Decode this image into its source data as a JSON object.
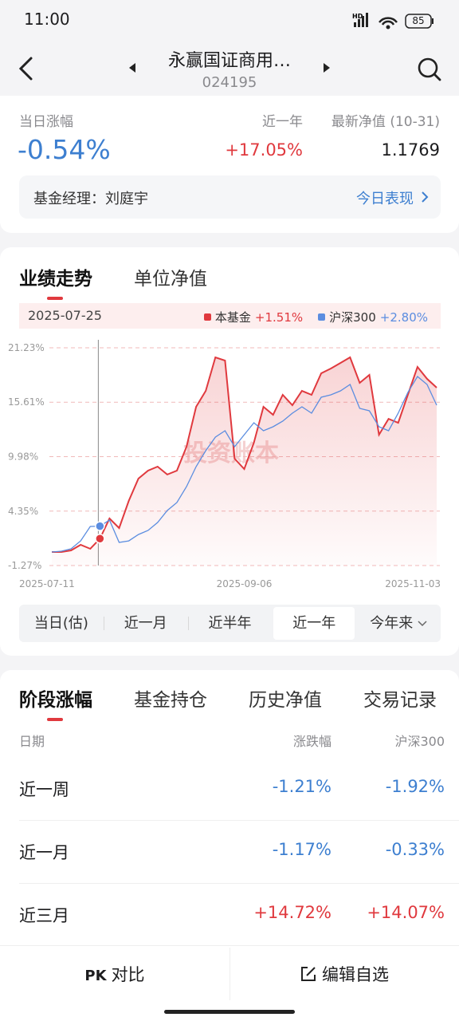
{
  "status_bar": {
    "time": "11:00",
    "battery": "85"
  },
  "header": {
    "title": "永赢国证商用…",
    "code": "024195"
  },
  "summary": {
    "labels": [
      "当日涨幅",
      "近一年",
      "最新净值 (10-31)"
    ],
    "values": [
      "-0.54%",
      "+17.05%",
      "1.1769"
    ]
  },
  "manager": {
    "label": "基金经理：刘庭宇",
    "link": "今日表现"
  },
  "chart_tabs": [
    "业绩走势",
    "单位净值"
  ],
  "chart_data": {
    "type": "line",
    "selected_date": "2025-07-25",
    "selected_index": 5,
    "watermark": "投资账本",
    "categories": [
      "2025-07-11",
      null,
      null,
      null,
      null,
      null,
      null,
      null,
      null,
      null,
      null,
      null,
      null,
      null,
      null,
      null,
      null,
      null,
      null,
      null,
      "2025-09-06",
      null,
      null,
      null,
      null,
      null,
      null,
      null,
      null,
      null,
      null,
      null,
      null,
      null,
      null,
      null,
      null,
      "2025-11-03",
      null,
      null,
      null
    ],
    "ylim": [
      -1.27,
      21.23
    ],
    "yticks": [
      {
        "value": 21.23,
        "label": "21.23%"
      },
      {
        "value": 15.61,
        "label": "15.61%"
      },
      {
        "value": 9.98,
        "label": "9.98%"
      },
      {
        "value": 4.35,
        "label": "4.35%"
      },
      {
        "value": -1.27,
        "label": "-1.27%"
      }
    ],
    "grid": true,
    "series": [
      {
        "name": "本基金",
        "color": "#e0393e",
        "area": true,
        "legend_value": "+1.51%",
        "values": [
          0.13,
          0.13,
          0.3,
          0.87,
          0.46,
          1.51,
          3.59,
          2.6,
          5.41,
          7.71,
          8.54,
          8.95,
          8.13,
          8.54,
          11.01,
          15.13,
          16.78,
          20.24,
          19.91,
          9.77,
          8.7,
          11.42,
          15.13,
          14.31,
          16.37,
          15.3,
          16.78,
          16.37,
          18.59,
          19.09,
          19.66,
          20.24,
          17.6,
          18.43,
          12.25,
          13.89,
          13.48,
          16.37,
          19.25,
          18.02,
          17.11
        ]
      },
      {
        "name": "沪深300",
        "color": "#5b8de0",
        "area": false,
        "legend_value": "+2.80%",
        "values": [
          0.13,
          0.21,
          0.46,
          1.28,
          2.77,
          2.8,
          3.43,
          1.12,
          1.28,
          1.94,
          2.36,
          3.18,
          4.42,
          5.24,
          6.89,
          8.95,
          10.6,
          12.0,
          12.66,
          11.01,
          12.25,
          13.48,
          12.66,
          13.07,
          13.65,
          14.47,
          15.13,
          14.47,
          16.12,
          16.37,
          16.78,
          17.44,
          14.97,
          14.72,
          13.07,
          12.66,
          14.47,
          16.61,
          18.26,
          17.44,
          15.3
        ]
      }
    ]
  },
  "range_tabs": {
    "items": [
      "当日(估)",
      "近一月",
      "近半年",
      "近一年",
      "今年来"
    ],
    "selected": 3
  },
  "section_tabs": [
    "阶段涨幅",
    "基金持仓",
    "历史净值",
    "交易记录"
  ],
  "table": {
    "up_color": "#e0393e",
    "down_color": "#3d7fd0",
    "header": [
      "日期",
      "涨跌幅",
      "沪深300"
    ],
    "rows": [
      [
        "近一周",
        "-1.21%",
        "-1.92%"
      ],
      [
        "近一月",
        "-1.17%",
        "-0.33%"
      ],
      [
        "近三月",
        "+14.72%",
        "+14.07%"
      ]
    ]
  },
  "bottom_bar": [
    "对比",
    "编辑自选"
  ]
}
